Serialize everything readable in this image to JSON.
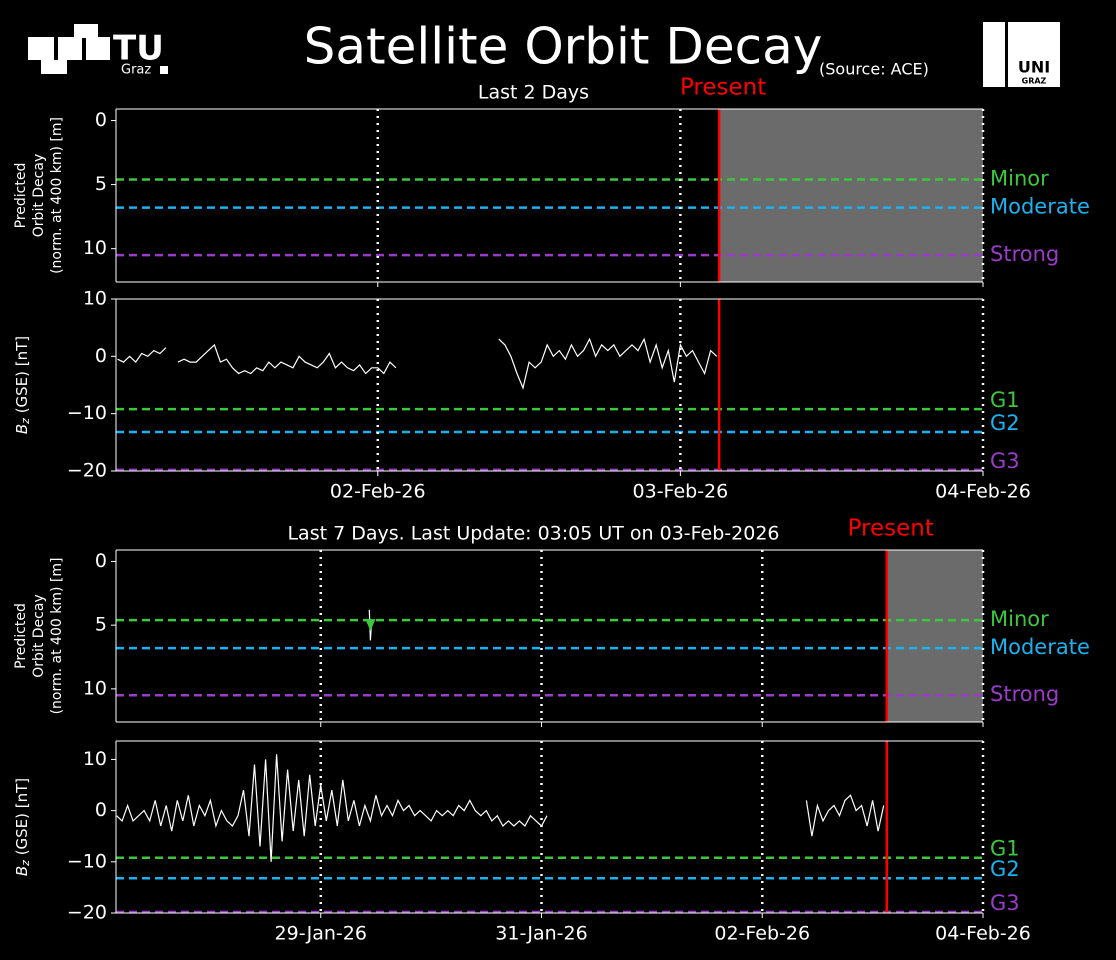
{
  "header": {
    "title": "Satellite Orbit Decay",
    "source": "(Source: ACE)",
    "logo_left": [
      "TU",
      "Graz"
    ],
    "logo_right": [
      "UNI",
      "GRAZ"
    ]
  },
  "chart_data": [
    {
      "type": "line",
      "title": "Last 2 Days",
      "present": {
        "label": "Present",
        "value": 1.128,
        "color": "#ff0000"
      },
      "shade_color": "#6b6b6b",
      "ylabel": [
        "Predicted",
        "Orbit Decay",
        "(norm. at 400 km) [m]"
      ],
      "xlim": [
        -0.865,
        2
      ],
      "xticks": [
        0,
        1,
        2
      ],
      "show_xtick_labels": false,
      "ylim": [
        12.6,
        -0.9
      ],
      "yticks": [
        0,
        5,
        10
      ],
      "grid": "dotted",
      "thresholds": [
        {
          "label": "Minor",
          "value": 4.6,
          "color": "#3cc83c"
        },
        {
          "label": "Moderate",
          "value": 6.8,
          "color": "#1ab2f0"
        },
        {
          "label": "Strong",
          "value": 10.5,
          "color": "#9a3cc8"
        }
      ],
      "series": []
    },
    {
      "type": "line",
      "present": {
        "value": 1.128,
        "color": "#ff0000"
      },
      "ylabel": {
        "symbol": "B",
        "subscript": "z",
        "text": " (GSE) [nT]"
      },
      "xlim": [
        -0.865,
        2
      ],
      "xticks": [
        {
          "value": 0,
          "label": "02-Feb-26"
        },
        {
          "value": 1,
          "label": "03-Feb-26"
        },
        {
          "value": 2,
          "label": "04-Feb-26"
        }
      ],
      "show_xtick_labels": true,
      "ylim": [
        -20,
        10
      ],
      "yticks": [
        {
          "value": -20,
          "label": "−20"
        },
        {
          "value": -10,
          "label": "−10"
        },
        0,
        10
      ],
      "grid": "dotted",
      "thresholds": [
        {
          "label": "G1",
          "value": -9.2,
          "color": "#3cc83c"
        },
        {
          "label": "G2",
          "value": -13.2,
          "color": "#1ab2f0"
        },
        {
          "label": "G3",
          "value": -19.8,
          "color": "#9a3cc8"
        }
      ],
      "series": [
        {
          "color": "#ffffff",
          "style": "line",
          "x": [
            -0.86,
            -0.84,
            -0.82,
            -0.8,
            -0.78,
            -0.76,
            -0.74,
            -0.72,
            -0.7,
            -0.69,
            -0.66,
            -0.64,
            -0.62,
            -0.6,
            -0.58,
            -0.56,
            -0.54,
            -0.52,
            -0.5,
            -0.48,
            -0.46,
            -0.44,
            -0.42,
            -0.4,
            -0.38,
            -0.36,
            -0.34,
            -0.32,
            -0.3,
            -0.28,
            -0.26,
            -0.24,
            -0.22,
            -0.2,
            -0.18,
            -0.16,
            -0.14,
            -0.12,
            -0.1,
            -0.08,
            -0.06,
            -0.04,
            -0.02,
            0,
            0.02,
            0.04,
            0.06,
            0.2,
            0.4,
            0.42,
            0.44,
            0.46,
            0.48,
            0.5,
            0.52,
            0.54,
            0.56,
            0.58,
            0.6,
            0.62,
            0.64,
            0.66,
            0.68,
            0.7,
            0.72,
            0.74,
            0.76,
            0.78,
            0.8,
            0.82,
            0.84,
            0.86,
            0.88,
            0.9,
            0.92,
            0.94,
            0.96,
            0.98,
            1.0,
            1.02,
            1.04,
            1.06,
            1.08,
            1.1,
            1.12
          ],
          "values": [
            -0.5,
            -1,
            0,
            -1,
            0.5,
            0,
            1,
            0.5,
            1.5,
            null,
            -1,
            -0.5,
            -1,
            -1,
            0,
            1,
            2,
            -1,
            -0.5,
            -2,
            -3,
            -2.5,
            -3,
            -2,
            -2.5,
            -1,
            -2,
            -1,
            -1.5,
            -2,
            0,
            -1,
            -1.5,
            -2,
            -1,
            0.5,
            -2,
            -1,
            -2,
            -2.5,
            -1.5,
            -3,
            -2,
            -2,
            -3,
            -1,
            -2,
            null,
            3,
            2,
            0,
            -3,
            -5.5,
            -1,
            -2,
            -1,
            2,
            0,
            1,
            -0.5,
            2,
            0,
            1,
            3,
            0,
            2,
            1,
            2,
            0,
            1,
            2,
            1,
            3,
            -1,
            2,
            -2,
            1,
            -4.5,
            2,
            0,
            1,
            -1,
            -3,
            1,
            0
          ]
        }
      ]
    },
    {
      "type": "line",
      "title": "Last 7 Days. Last Update: 03:05 UT on 03-Feb-2026",
      "present": {
        "label": "Present",
        "value": 5.128,
        "color": "#ff0000"
      },
      "shade_color": "#6b6b6b",
      "ylabel": [
        "Predicted",
        "Orbit Decay",
        "(norm. at 400 km) [m]"
      ],
      "xlim": [
        -1.855,
        6
      ],
      "xticks": [
        0,
        2,
        4,
        6
      ],
      "show_xtick_labels": false,
      "ylim": [
        12.6,
        -0.9
      ],
      "yticks": [
        0,
        5,
        10
      ],
      "grid": "dotted",
      "thresholds": [
        {
          "label": "Minor",
          "value": 4.6,
          "color": "#3cc83c"
        },
        {
          "label": "Moderate",
          "value": 6.8,
          "color": "#1ab2f0"
        },
        {
          "label": "Strong",
          "value": 10.5,
          "color": "#9a3cc8"
        }
      ],
      "series": [
        {
          "color": "#ffffff",
          "style": "line",
          "x": [
            0.44,
            0.45,
            0.46
          ],
          "values": [
            3.8,
            6.2,
            4.8
          ]
        },
        {
          "color": "#3cc83c",
          "style": "marker",
          "x": [
            0.45
          ],
          "values": [
            5.0
          ]
        }
      ]
    },
    {
      "type": "line",
      "present": {
        "value": 5.128,
        "color": "#ff0000"
      },
      "ylabel": {
        "symbol": "B",
        "subscript": "z",
        "text": " (GSE) [nT]"
      },
      "xlim": [
        -1.855,
        6
      ],
      "xticks": [
        {
          "value": 0,
          "label": "29-Jan-26"
        },
        {
          "value": 2,
          "label": "31-Jan-26"
        },
        {
          "value": 4,
          "label": "02-Feb-26"
        },
        {
          "value": 6,
          "label": "04-Feb-26"
        }
      ],
      "show_xtick_labels": true,
      "ylim": [
        -20,
        13.6
      ],
      "yticks": [
        {
          "value": -20,
          "label": "−20"
        },
        {
          "value": -10,
          "label": "−10"
        },
        0,
        10
      ],
      "grid": "dotted",
      "thresholds": [
        {
          "label": "G1",
          "value": -9.2,
          "color": "#3cc83c"
        },
        {
          "label": "G2",
          "value": -13.2,
          "color": "#1ab2f0"
        },
        {
          "label": "G3",
          "value": -19.8,
          "color": "#9a3cc8"
        }
      ],
      "series": [
        {
          "color": "#ffffff",
          "style": "line",
          "x": [
            -1.85,
            -1.8,
            -1.75,
            -1.7,
            -1.65,
            -1.6,
            -1.55,
            -1.5,
            -1.45,
            -1.4,
            -1.35,
            -1.3,
            -1.25,
            -1.2,
            -1.15,
            -1.1,
            -1.05,
            -1.0,
            -0.95,
            -0.9,
            -0.85,
            -0.8,
            -0.75,
            -0.7,
            -0.65,
            -0.6,
            -0.55,
            -0.5,
            -0.45,
            -0.4,
            -0.35,
            -0.3,
            -0.25,
            -0.2,
            -0.15,
            -0.1,
            -0.05,
            0,
            0.05,
            0.1,
            0.15,
            0.2,
            0.25,
            0.3,
            0.35,
            0.4,
            0.45,
            0.5,
            0.55,
            0.6,
            0.65,
            0.7,
            0.75,
            0.8,
            0.85,
            0.9,
            0.95,
            1.0,
            1.05,
            1.1,
            1.15,
            1.2,
            1.25,
            1.3,
            1.35,
            1.4,
            1.45,
            1.5,
            1.55,
            1.6,
            1.65,
            1.7,
            1.75,
            1.8,
            1.85,
            1.9,
            1.95,
            2.0,
            2.05,
            3.2,
            4.4,
            4.45,
            4.5,
            4.55,
            4.6,
            4.65,
            4.7,
            4.75,
            4.8,
            4.85,
            4.9,
            4.95,
            5.0,
            5.05,
            5.1
          ],
          "values": [
            -1,
            -2,
            1,
            -2,
            -1,
            0,
            -2,
            2,
            -3,
            1,
            -4,
            2,
            -2,
            3,
            -3,
            1,
            -1,
            2,
            -3,
            0,
            -2,
            -3,
            -1,
            4,
            -5,
            9,
            -7,
            10,
            -10,
            11,
            -6,
            8,
            -4,
            6,
            -5,
            7,
            -3,
            5,
            -2,
            4,
            -3,
            6,
            -2,
            2,
            -3,
            1,
            -2,
            3,
            -1,
            1,
            -1,
            2,
            0,
            1,
            -1,
            0,
            -1,
            -2,
            0,
            -1,
            0,
            -1,
            1,
            0,
            2,
            0,
            -1,
            0,
            -2,
            -1,
            -3,
            -2,
            -3,
            -2,
            -3,
            -1,
            -2,
            -3,
            -1,
            null,
            2,
            -5,
            1,
            -2,
            0,
            1,
            -1,
            2,
            3,
            0,
            1,
            -3,
            2,
            -4,
            1
          ]
        }
      ]
    }
  ]
}
